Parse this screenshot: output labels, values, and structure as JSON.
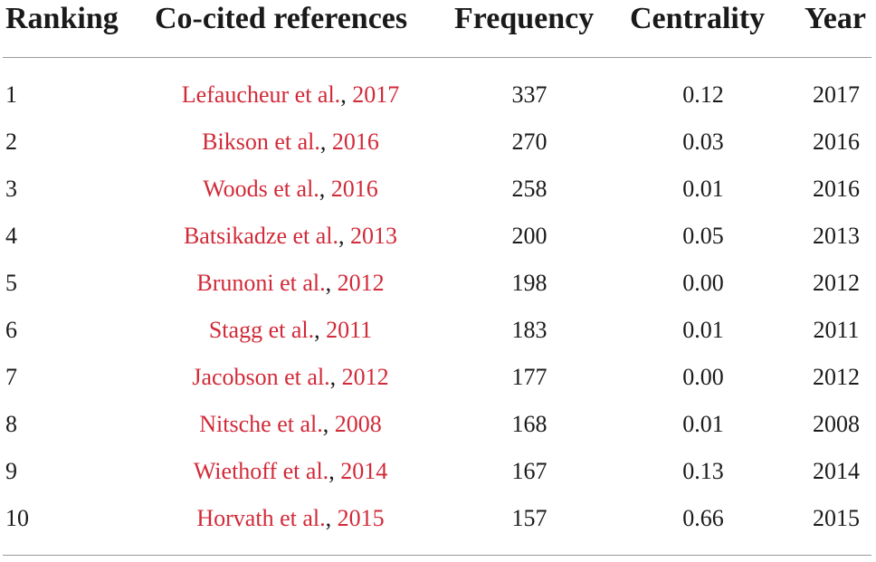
{
  "table": {
    "headers": {
      "ranking": "Ranking",
      "references": "Co-cited references",
      "frequency": "Frequency",
      "centrality": "Centrality",
      "year": "Year"
    },
    "rows": [
      {
        "rank": "1",
        "author": "Lefaucheur et al.",
        "sep": ",",
        "cite_year": "2017",
        "frequency": "337",
        "centrality": "0.12",
        "year": "2017"
      },
      {
        "rank": "2",
        "author": "Bikson et al.",
        "sep": ",",
        "cite_year": "2016",
        "frequency": "270",
        "centrality": "0.03",
        "year": "2016"
      },
      {
        "rank": "3",
        "author": "Woods et al.",
        "sep": ",",
        "cite_year": "2016",
        "frequency": "258",
        "centrality": "0.01",
        "year": "2016"
      },
      {
        "rank": "4",
        "author": "Batsikadze et al.",
        "sep": ",",
        "cite_year": "2013",
        "frequency": "200",
        "centrality": "0.05",
        "year": "2013"
      },
      {
        "rank": "5",
        "author": "Brunoni et al.",
        "sep": ",",
        "cite_year": "2012",
        "frequency": "198",
        "centrality": "0.00",
        "year": "2012"
      },
      {
        "rank": "6",
        "author": "Stagg et al.",
        "sep": ",",
        "cite_year": "2011",
        "frequency": "183",
        "centrality": "0.01",
        "year": "2011"
      },
      {
        "rank": "7",
        "author": "Jacobson et al.",
        "sep": ",",
        "cite_year": "2012",
        "frequency": "177",
        "centrality": "0.00",
        "year": "2012"
      },
      {
        "rank": "8",
        "author": "Nitsche et al.",
        "sep": ",",
        "cite_year": "2008",
        "frequency": "168",
        "centrality": "0.01",
        "year": "2008"
      },
      {
        "rank": "9",
        "author": "Wiethoff et al.",
        "sep": ",",
        "cite_year": "2014",
        "frequency": "167",
        "centrality": "0.13",
        "year": "2014"
      },
      {
        "rank": "10",
        "author": "Horvath et al.",
        "sep": ",",
        "cite_year": "2015",
        "frequency": "157",
        "centrality": "0.66",
        "year": "2015"
      }
    ]
  },
  "colors": {
    "link": "#d12a38",
    "text": "#1a1a1a",
    "rule": "#9a9a9a"
  }
}
